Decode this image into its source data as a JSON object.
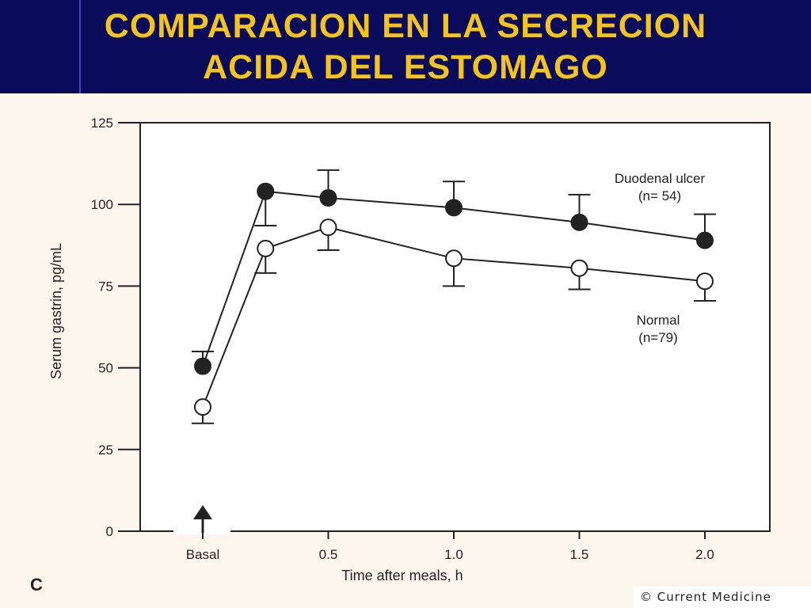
{
  "slide": {
    "title_line1": "COMPARACION EN LA SECRECION",
    "title_line2": "ACIDA DEL ESTOMAGO",
    "panel_letter": "C",
    "credit": "© Current Medicine"
  },
  "colors": {
    "background": "#0b0b5c",
    "title": "#f2c41c",
    "panel": "#fdf6ec",
    "ink": "#222222"
  },
  "chart_data": {
    "type": "line",
    "xlabel": "Time after meals, h",
    "ylabel": "Serum gastrin, pg/mL",
    "ylim": [
      0,
      125
    ],
    "yticks": [
      0,
      25,
      50,
      75,
      100,
      125
    ],
    "xticks": [
      {
        "value": 0,
        "label": "Basal"
      },
      {
        "value": 0.5,
        "label": "0.5"
      },
      {
        "value": 1.0,
        "label": "1.0"
      },
      {
        "value": 1.5,
        "label": "1.5"
      },
      {
        "value": 2.0,
        "label": "2.0"
      }
    ],
    "arrow_at": 0,
    "series": [
      {
        "name": "Duodenal ulcer",
        "n_label": "(n= 54)",
        "marker": "filled",
        "points": [
          {
            "x": 0,
            "y": 50.5,
            "err_high": 55
          },
          {
            "x": 0.25,
            "y": 104,
            "err_low": 93.5
          },
          {
            "x": 0.5,
            "y": 102,
            "err_high": 110.5
          },
          {
            "x": 1.0,
            "y": 99,
            "err_high": 107
          },
          {
            "x": 1.5,
            "y": 94.5,
            "err_high": 103
          },
          {
            "x": 2.0,
            "y": 89,
            "err_high": 97
          }
        ]
      },
      {
        "name": "Normal",
        "n_label": "(n=79)",
        "marker": "open",
        "points": [
          {
            "x": 0,
            "y": 38,
            "err_low": 33
          },
          {
            "x": 0.25,
            "y": 86.5,
            "err_low": 79
          },
          {
            "x": 0.5,
            "y": 93,
            "err_low": 86
          },
          {
            "x": 1.0,
            "y": 83.5,
            "err_low": 75
          },
          {
            "x": 1.5,
            "y": 80.5,
            "err_low": 74
          },
          {
            "x": 2.0,
            "y": 76.5,
            "err_low": 70.5
          }
        ]
      }
    ]
  }
}
